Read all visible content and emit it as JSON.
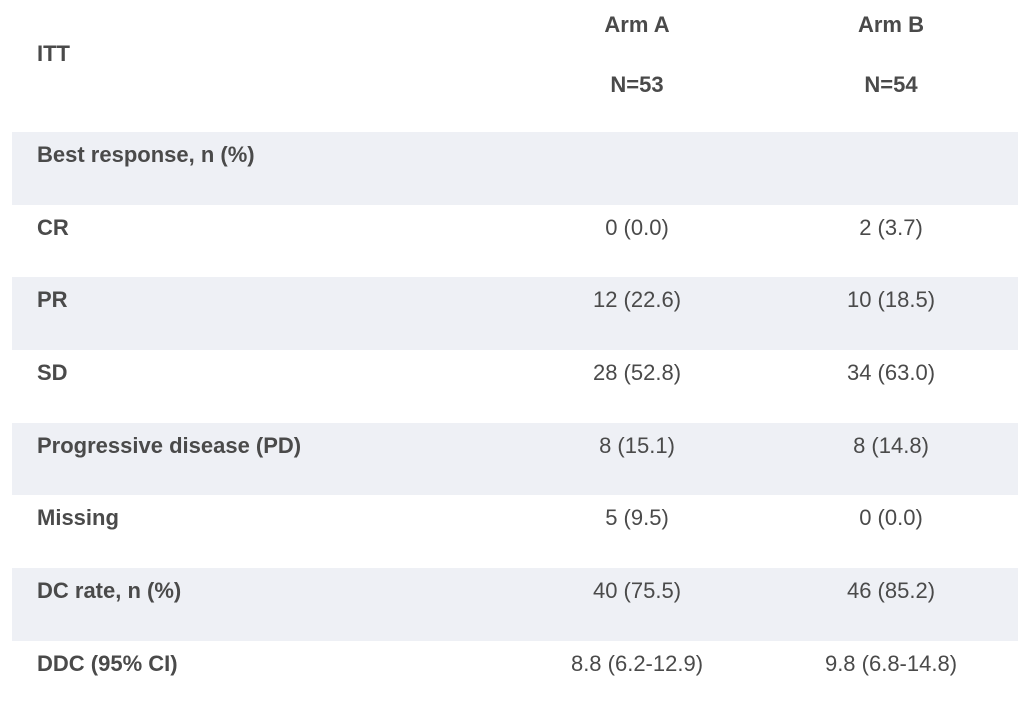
{
  "table": {
    "header": {
      "itt": "ITT",
      "arm_a": {
        "name": "Arm A",
        "n": "N=53"
      },
      "arm_b": {
        "name": "Arm B",
        "n": "N=54"
      }
    },
    "rows": [
      {
        "label": "Best response, n (%)",
        "a": "",
        "b": ""
      },
      {
        "label": "CR",
        "a": "0 (0.0)",
        "b": "2 (3.7)"
      },
      {
        "label": "PR",
        "a": "12 (22.6)",
        "b": "10 (18.5)"
      },
      {
        "label": "SD",
        "a": "28 (52.8)",
        "b": "34 (63.0)"
      },
      {
        "label": "Progressive disease (PD)",
        "a": "8 (15.1)",
        "b": "8 (14.8)"
      },
      {
        "label": "Missing",
        "a": "5 (9.5)",
        "b": "0 (0.0)"
      },
      {
        "label": "DC rate, n (%)",
        "a": "40 (75.5)",
        "b": "46 (85.2)"
      },
      {
        "label": "DDC (95% CI)",
        "a": "8.8 (6.2-12.9)",
        "b": "9.8 (6.8-14.8)"
      }
    ]
  },
  "colors": {
    "shaded_row": "#eef0f5",
    "text": "#4a4a4a",
    "background": "#ffffff"
  }
}
